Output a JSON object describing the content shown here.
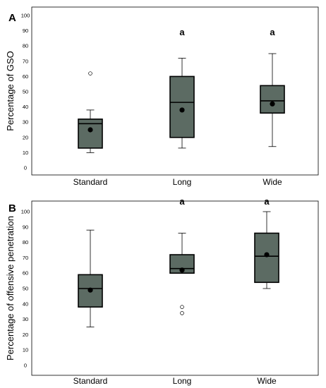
{
  "chart_data": [
    {
      "type": "box",
      "panel_label": "A",
      "ylabel": "Percentage of GSO",
      "ylim": [
        0,
        100
      ],
      "yticks": [
        0,
        10,
        20,
        30,
        40,
        50,
        60,
        70,
        80,
        90,
        100
      ],
      "categories": [
        "Standard",
        "Long",
        "Wide"
      ],
      "boxes": [
        {
          "whisker_low": 10,
          "q1": 13,
          "median": 29,
          "q3": 32,
          "whisker_high": 38,
          "mean": 25,
          "outliers": [
            62
          ],
          "sig": ""
        },
        {
          "whisker_low": 13,
          "q1": 20,
          "median": 43,
          "q3": 60,
          "whisker_high": 72,
          "mean": 38,
          "outliers": [],
          "sig": "a"
        },
        {
          "whisker_low": 14,
          "q1": 36,
          "median": 44,
          "q3": 54,
          "whisker_high": 75,
          "mean": 42,
          "outliers": [],
          "sig": "a"
        }
      ],
      "box_color": "#5c6b63"
    },
    {
      "type": "box",
      "panel_label": "B",
      "ylabel": "Percentage of offensive penetration",
      "ylim": [
        0,
        100
      ],
      "yticks": [
        0,
        10,
        20,
        30,
        40,
        50,
        60,
        70,
        80,
        90,
        100
      ],
      "categories": [
        "Standard",
        "Long",
        "Wide"
      ],
      "boxes": [
        {
          "whisker_low": 25,
          "q1": 38,
          "median": 50,
          "q3": 59,
          "whisker_high": 88,
          "mean": 49,
          "outliers": [],
          "sig": ""
        },
        {
          "whisker_low": 60,
          "q1": 60,
          "median": 63,
          "q3": 72,
          "whisker_high": 86,
          "mean": 62,
          "outliers": [
            38,
            34
          ],
          "sig": "a"
        },
        {
          "whisker_low": 50,
          "q1": 54,
          "median": 71,
          "q3": 86,
          "whisker_high": 100,
          "mean": 72,
          "outliers": [],
          "sig": "a"
        }
      ],
      "box_color": "#5c6b63"
    }
  ]
}
